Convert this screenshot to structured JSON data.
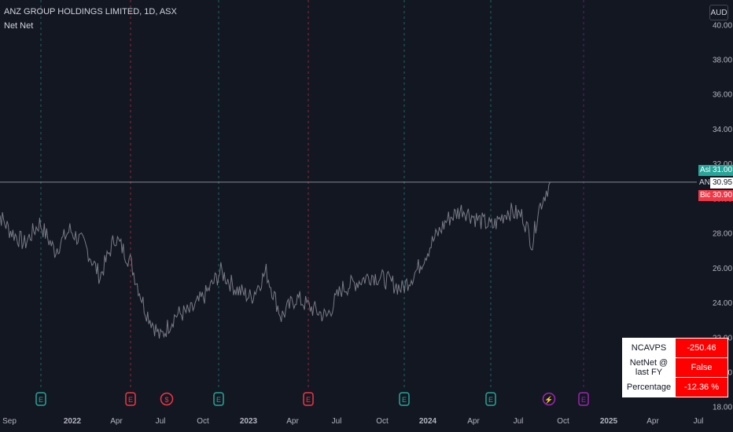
{
  "header": {
    "title": "ANZ GROUP HOLDINGS LIMITED, 1D, ASX",
    "indicator": "Net Net",
    "currency": "AUD"
  },
  "price_labels": {
    "ask_label": "Ask",
    "ask_value": "31.00",
    "symbol_label": "ANZ",
    "last_value": "30.95",
    "bid_label": "Bid",
    "bid_value": "30.90"
  },
  "netnet_table": {
    "rows": [
      {
        "label": "NCAVPS",
        "value": "-250.46"
      },
      {
        "label": "NetNet @ last FY",
        "value": "False"
      },
      {
        "label": "Percentage",
        "value": "-12.36 %"
      }
    ]
  },
  "colors": {
    "background": "#131722",
    "price_line": "#787b86",
    "ask": "#26a69a",
    "bid": "#f23645",
    "earnings_teal": "#26a69a",
    "earnings_red": "#f23645",
    "earnings_purple": "#9c27b0",
    "table_value_bg": "#ff0000"
  },
  "chart_data": {
    "type": "line",
    "title": "ANZ GROUP HOLDINGS LIMITED, 1D, ASX",
    "x_ticks": [
      "Sep",
      "2022",
      "Apr",
      "Jul",
      "Oct",
      "2023",
      "Apr",
      "Jul",
      "Oct",
      "2024",
      "Apr",
      "Jul",
      "Oct",
      "2025",
      "Apr",
      "Jul"
    ],
    "y_ticks": [
      "18.00",
      "20.00",
      "22.00",
      "24.00",
      "26.00",
      "28.00",
      "30.00",
      "32.00",
      "34.00",
      "36.00",
      "38.00",
      "40.00"
    ],
    "ylim": [
      18,
      40
    ],
    "series": [
      {
        "values": [
          {
            "x": "2021-08",
            "y": 29.5
          },
          {
            "x": "2021-09",
            "y": 28.2
          },
          {
            "x": "2021-10",
            "y": 27.4
          },
          {
            "x": "2021-11",
            "y": 28.6
          },
          {
            "x": "2021-12",
            "y": 27.0
          },
          {
            "x": "2022-01",
            "y": 28.2
          },
          {
            "x": "2022-02",
            "y": 27.3
          },
          {
            "x": "2022-03",
            "y": 25.5
          },
          {
            "x": "2022-04",
            "y": 27.8
          },
          {
            "x": "2022-05",
            "y": 26.4
          },
          {
            "x": "2022-06",
            "y": 23.6
          },
          {
            "x": "2022-07",
            "y": 22.0
          },
          {
            "x": "2022-08",
            "y": 23.3
          },
          {
            "x": "2022-09",
            "y": 23.5
          },
          {
            "x": "2022-10",
            "y": 24.5
          },
          {
            "x": "2022-11",
            "y": 25.8
          },
          {
            "x": "2022-12",
            "y": 24.8
          },
          {
            "x": "2023-01",
            "y": 24.3
          },
          {
            "x": "2023-02",
            "y": 25.8
          },
          {
            "x": "2023-03",
            "y": 23.2
          },
          {
            "x": "2023-04",
            "y": 24.3
          },
          {
            "x": "2023-05",
            "y": 23.7
          },
          {
            "x": "2023-06",
            "y": 23.2
          },
          {
            "x": "2023-07",
            "y": 24.8
          },
          {
            "x": "2023-08",
            "y": 25.2
          },
          {
            "x": "2023-09",
            "y": 25.6
          },
          {
            "x": "2023-10",
            "y": 25.3
          },
          {
            "x": "2023-11",
            "y": 24.8
          },
          {
            "x": "2023-12",
            "y": 25.9
          },
          {
            "x": "2024-01",
            "y": 27.5
          },
          {
            "x": "2024-02",
            "y": 28.8
          },
          {
            "x": "2024-03",
            "y": 29.4
          },
          {
            "x": "2024-04",
            "y": 28.8
          },
          {
            "x": "2024-05",
            "y": 28.4
          },
          {
            "x": "2024-06",
            "y": 29.3
          },
          {
            "x": "2024-07",
            "y": 29.0
          },
          {
            "x": "2024-07-20",
            "y": 27.4
          },
          {
            "x": "2024-08",
            "y": 29.3
          },
          {
            "x": "2024-08-15",
            "y": 30.3
          },
          {
            "x": "2024-08-25",
            "y": 30.95
          }
        ]
      }
    ],
    "last_price": 30.95,
    "ask": 31.0,
    "bid": 30.9,
    "event_markers": [
      {
        "date": "2021-10",
        "kind": "E",
        "color": "teal"
      },
      {
        "date": "2022-04",
        "kind": "E",
        "color": "red"
      },
      {
        "date": "2022-06",
        "kind": "$",
        "color": "red"
      },
      {
        "date": "2022-10",
        "kind": "E",
        "color": "teal"
      },
      {
        "date": "2023-04",
        "kind": "E",
        "color": "red"
      },
      {
        "date": "2023-10",
        "kind": "E",
        "color": "teal"
      },
      {
        "date": "2024-04",
        "kind": "E",
        "color": "teal"
      },
      {
        "date": "2024-08",
        "kind": "⚡",
        "color": "purple"
      },
      {
        "date": "2024-10",
        "kind": "E",
        "color": "purple"
      }
    ],
    "grid": true
  }
}
